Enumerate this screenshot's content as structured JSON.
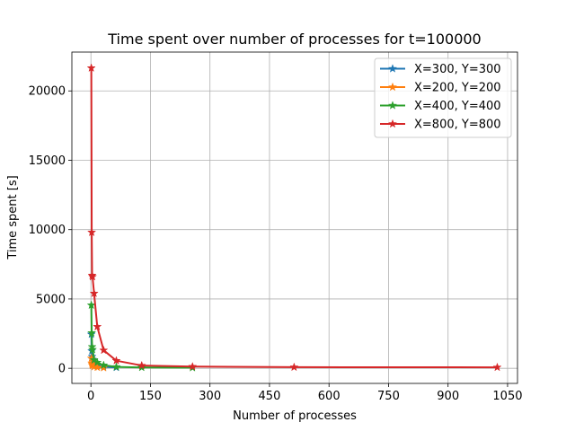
{
  "chart_data": {
    "type": "line",
    "title": "Time spent over number of processes for t=100000",
    "xlabel": "Number of processes",
    "ylabel": "Time spent [s]",
    "xlim": [
      -48,
      1075
    ],
    "ylim": [
      -1090,
      22800
    ],
    "xticks": [
      0,
      150,
      300,
      450,
      600,
      750,
      900,
      1050
    ],
    "yticks": [
      0,
      5000,
      10000,
      15000,
      20000
    ],
    "grid": true,
    "legend_position": "top-right",
    "marker": "star",
    "series": [
      {
        "name": "X=300, Y=300",
        "color": "#1f77b4",
        "x": [
          1,
          2,
          3,
          4,
          8,
          16,
          32,
          64
        ],
        "y": [
          2450,
          1250,
          850,
          640,
          330,
          180,
          100,
          60
        ]
      },
      {
        "name": "X=200, Y=200",
        "color": "#ff7f0e",
        "x": [
          1,
          2,
          3,
          4,
          8,
          16,
          32
        ],
        "y": [
          720,
          370,
          260,
          200,
          110,
          65,
          40
        ]
      },
      {
        "name": "X=400, Y=400",
        "color": "#2ca02c",
        "x": [
          1,
          2,
          3,
          4,
          8,
          16,
          32,
          64,
          128,
          256
        ],
        "y": [
          4550,
          2550,
          1550,
          1350,
          600,
          420,
          220,
          100,
          60,
          40
        ]
      },
      {
        "name": "X=800, Y=800",
        "color": "#d62728",
        "x": [
          1,
          2,
          3,
          4,
          8,
          16,
          32,
          64,
          128,
          256,
          512,
          1024
        ],
        "y": [
          21650,
          9800,
          6700,
          6600,
          5400,
          3000,
          1300,
          550,
          200,
          120,
          80,
          70
        ]
      }
    ]
  }
}
